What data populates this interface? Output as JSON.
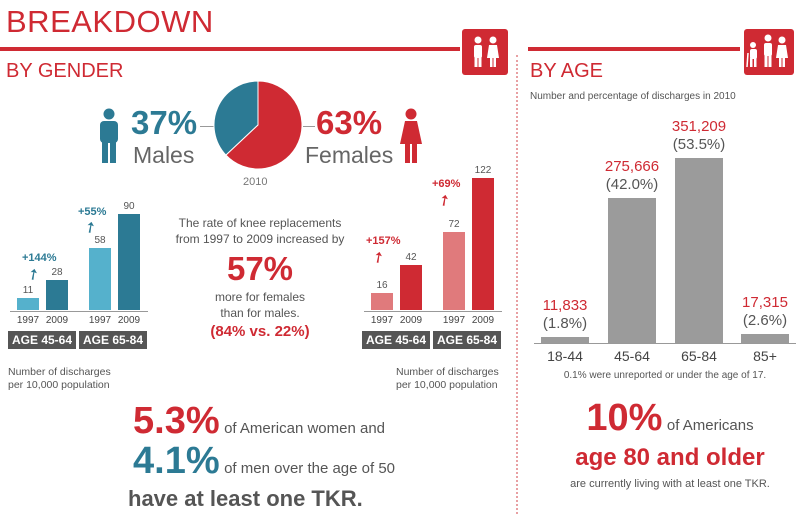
{
  "header": {
    "title": "BREAKDOWN",
    "gender_subtitle": "BY GENDER",
    "age_subtitle": "BY AGE",
    "age_note": "Number and percentage of discharges in 2010"
  },
  "colors": {
    "red": "#cf2a33",
    "teal": "#2c7a94",
    "light_teal": "#55b1cc",
    "light_red": "#e07a7c",
    "gray": "#9b9b9b"
  },
  "gender": {
    "male_pct": "37%",
    "male_label": "Males",
    "female_pct": "63%",
    "female_label": "Females",
    "pie_year": "2010",
    "center_text": {
      "line1": "The rate of knee replacements",
      "line2": "from 1997 to 2009 increased by",
      "big": "57%",
      "line3": "more for females",
      "line4": "than for males.",
      "line5": "(84% vs. 22%)"
    },
    "male_note": {
      "line1": "Number of discharges",
      "line2": "per 10,000 population"
    },
    "female_note": {
      "line1": "Number of discharges",
      "line2": "per 10,000 population"
    }
  },
  "chart_data": [
    {
      "type": "pie",
      "title": "",
      "categories": [
        "Males",
        "Females"
      ],
      "values": [
        37,
        63
      ],
      "year": "2010"
    },
    {
      "type": "bar",
      "title": "",
      "groups": [
        "AGE 45-64",
        "AGE 65-84"
      ],
      "categories": [
        "1997",
        "2009",
        "1997",
        "2009"
      ],
      "values": [
        11,
        28,
        58,
        90
      ],
      "changes": [
        "+144%",
        "+55%"
      ],
      "ylim": [
        0,
        90
      ]
    },
    {
      "type": "bar",
      "title": "",
      "groups": [
        "AGE 45-64",
        "AGE 65-84"
      ],
      "categories": [
        "1997",
        "2009",
        "1997",
        "2009"
      ],
      "values": [
        16,
        42,
        72,
        122
      ],
      "changes": [
        "+157%",
        "+69%"
      ],
      "ylim": [
        0,
        122
      ]
    },
    {
      "type": "bar",
      "title": "",
      "categories": [
        "18-44",
        "45-64",
        "65-84",
        "85+"
      ],
      "values": [
        11833,
        275666,
        351209,
        17315
      ],
      "value_labels": [
        "11,833",
        "275,666",
        "351,209",
        "17,315"
      ],
      "pct_labels": [
        "(1.8%)",
        "(42.0%)",
        "(53.5%)",
        "(2.6%)"
      ],
      "ylim": [
        0,
        351209
      ]
    }
  ],
  "labels": {
    "male_chart": {
      "years": [
        "1997",
        "2009",
        "1997",
        "2009"
      ],
      "values": [
        "11",
        "28",
        "58",
        "90"
      ],
      "changes": [
        "+144%",
        "+55%"
      ],
      "groups": [
        "AGE 45-64",
        "AGE 65-84"
      ]
    },
    "female_chart": {
      "years": [
        "1997",
        "2009",
        "1997",
        "2009"
      ],
      "values": [
        "16",
        "42",
        "72",
        "122"
      ],
      "changes": [
        "+157%",
        "+69%"
      ],
      "groups": [
        "AGE 45-64",
        "AGE 65-84"
      ]
    },
    "age_chart": {
      "categories": [
        "18-44",
        "45-64",
        "65-84",
        "85+"
      ],
      "values": [
        "11,833",
        "275,666",
        "351,209",
        "17,315"
      ],
      "pcts": [
        "(1.8%)",
        "(42.0%)",
        "(53.5%)",
        "(2.6%)"
      ],
      "footnote": "0.1% were unreported or under the age of 17."
    }
  },
  "bottom_left": {
    "women_pct": "5.3%",
    "women_text": "of American women and",
    "men_pct": "4.1%",
    "men_text": "of men over the age of 50",
    "tkr_text": "have at least one TKR."
  },
  "bottom_right": {
    "pct": "10%",
    "pct_text": "of Americans",
    "age_line": "age 80 and older",
    "living_text": "are currently living with at least one TKR."
  }
}
